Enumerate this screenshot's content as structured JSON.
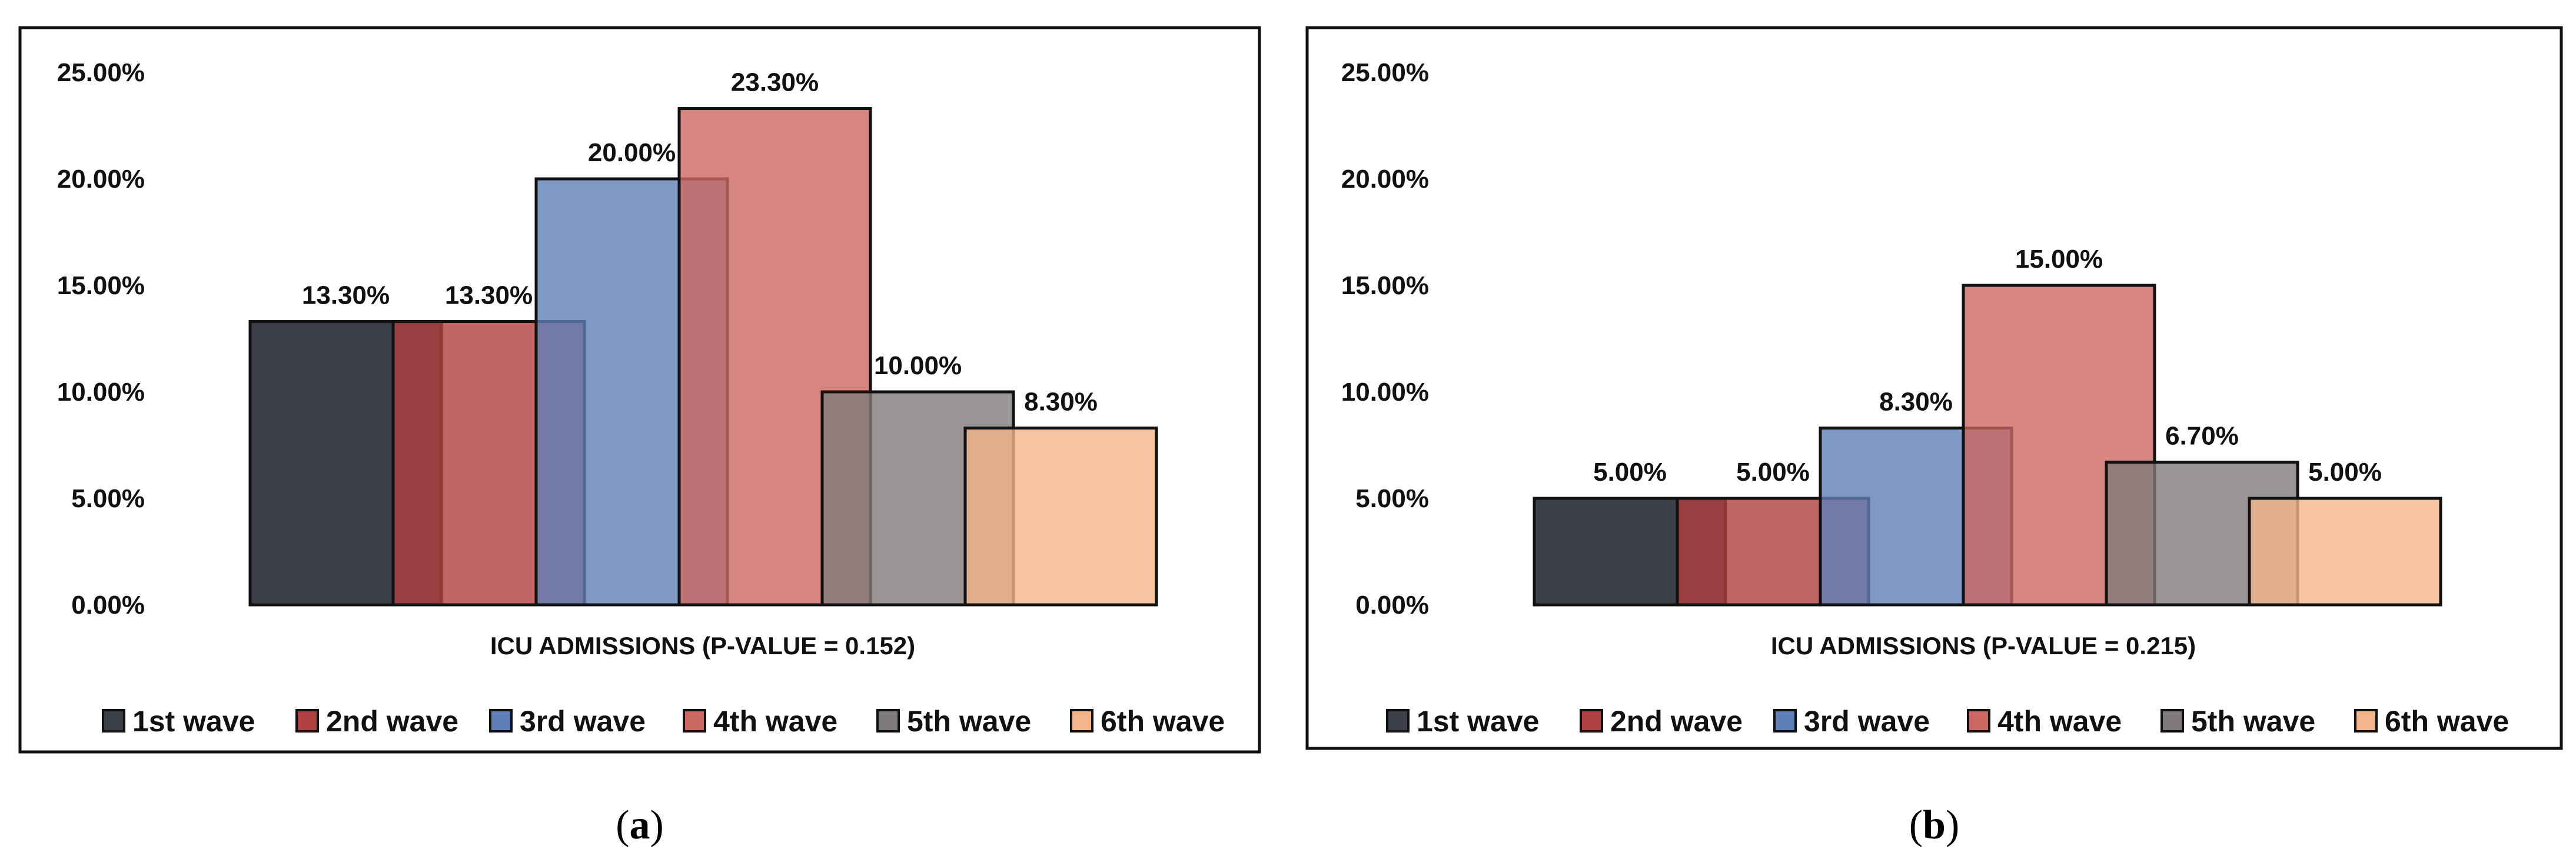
{
  "colors": [
    "#3a3f49",
    "#b04040",
    "#5f7fb8",
    "#cc6660",
    "#7e7a79",
    "#f5b58a"
  ],
  "chart_data": [
    {
      "type": "bar",
      "panel": "a",
      "xlabel": "ICU ADMISSIONS (P-VALUE = 0.152)",
      "y_ticks": [
        "0.00%",
        "5.00%",
        "10.00%",
        "15.00%",
        "20.00%",
        "25.00%"
      ],
      "ylim": [
        0,
        25
      ],
      "series": [
        {
          "name": "1st wave",
          "value": 13.3,
          "label": "13.30%"
        },
        {
          "name": "2nd wave",
          "value": 13.3,
          "label": "13.30%"
        },
        {
          "name": "3rd wave",
          "value": 20.0,
          "label": "20.00%"
        },
        {
          "name": "4th wave",
          "value": 23.3,
          "label": "23.30%"
        },
        {
          "name": "5th wave",
          "value": 10.0,
          "label": "10.00%"
        },
        {
          "name": "6th wave",
          "value": 8.3,
          "label": "8.30%"
        }
      ],
      "legend": [
        "1st wave",
        "2nd wave",
        "3rd wave",
        "4th wave",
        "5th wave",
        "6th wave"
      ],
      "legend_position": "bottom"
    },
    {
      "type": "bar",
      "panel": "b",
      "xlabel": "ICU ADMISSIONS (P-VALUE = 0.215)",
      "y_ticks": [
        "0.00%",
        "5.00%",
        "10.00%",
        "15.00%",
        "20.00%",
        "25.00%"
      ],
      "ylim": [
        0,
        25
      ],
      "series": [
        {
          "name": "1st wave",
          "value": 5.0,
          "label": "5.00%"
        },
        {
          "name": "2nd wave",
          "value": 5.0,
          "label": "5.00%"
        },
        {
          "name": "3rd wave",
          "value": 8.3,
          "label": "8.30%"
        },
        {
          "name": "4th wave",
          "value": 15.0,
          "label": "15.00%"
        },
        {
          "name": "5th wave",
          "value": 6.7,
          "label": "6.70%"
        },
        {
          "name": "6th wave",
          "value": 5.0,
          "label": "5.00%"
        }
      ],
      "legend": [
        "1st wave",
        "2nd wave",
        "3rd wave",
        "4th wave",
        "5th wave",
        "6th wave"
      ],
      "legend_position": "bottom"
    }
  ],
  "captions": [
    {
      "open": "(",
      "letter": "a",
      "close": ")"
    },
    {
      "open": "(",
      "letter": "b",
      "close": ")"
    }
  ]
}
